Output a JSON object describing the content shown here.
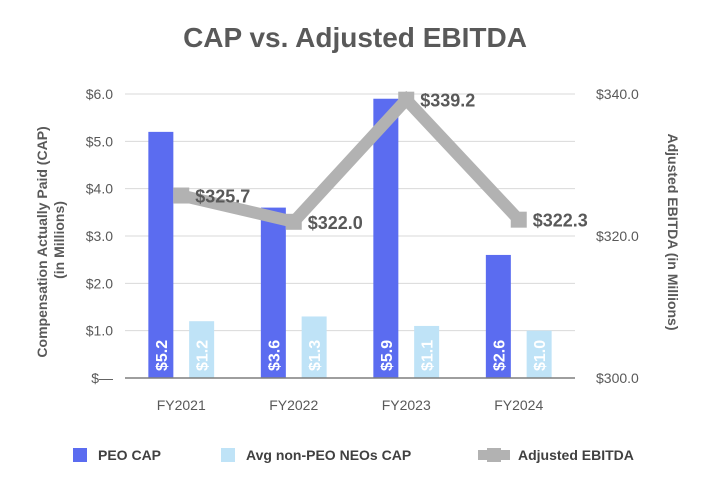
{
  "chart_data": {
    "type": "bar",
    "title": "CAP vs. Adjusted EBITDA",
    "categories": [
      "FY2021",
      "FY2022",
      "FY2023",
      "FY2024"
    ],
    "ylabel": "Compensation Actually Paid (CAP) (in Millions)",
    "ylabel_line1": "Compensation Actually Paid (CAP)",
    "ylabel_line2": "(in Millions)",
    "y2label": "Adjusted EBITDA (in Millions)",
    "ylim": [
      0,
      6
    ],
    "y2lim": [
      300,
      340
    ],
    "y_ticks": [
      {
        "value": 0,
        "label": "$—"
      },
      {
        "value": 1,
        "label": "$1.0"
      },
      {
        "value": 2,
        "label": "$2.0"
      },
      {
        "value": 3,
        "label": "$3.0"
      },
      {
        "value": 4,
        "label": "$4.0"
      },
      {
        "value": 5,
        "label": "$5.0"
      },
      {
        "value": 6,
        "label": "$6.0"
      }
    ],
    "y2_ticks": [
      {
        "value": 300,
        "label": "$300.0"
      },
      {
        "value": 320,
        "label": "$320.0"
      },
      {
        "value": 340,
        "label": "$340.0"
      }
    ],
    "series": [
      {
        "name": "PEO CAP",
        "type": "bar",
        "axis": "left",
        "color": "#5B6CF0",
        "values": [
          5.2,
          3.6,
          5.9,
          2.6
        ],
        "labels": [
          "$5.2",
          "$3.6",
          "$5.9",
          "$2.6"
        ]
      },
      {
        "name": "Avg non-PEO NEOs CAP",
        "type": "bar",
        "axis": "left",
        "color": "#BFE3F7",
        "values": [
          1.2,
          1.3,
          1.1,
          1.0
        ],
        "labels": [
          "$1.2",
          "$1.3",
          "$1.1",
          "$1.0"
        ]
      },
      {
        "name": "Adjusted EBITDA",
        "type": "line",
        "axis": "right",
        "color": "#B2B2B2",
        "values": [
          325.7,
          322.0,
          339.2,
          322.3
        ],
        "labels": [
          "$325.7",
          "$322.0",
          "$339.2",
          "$322.3"
        ]
      }
    ],
    "legend": "bottom"
  }
}
